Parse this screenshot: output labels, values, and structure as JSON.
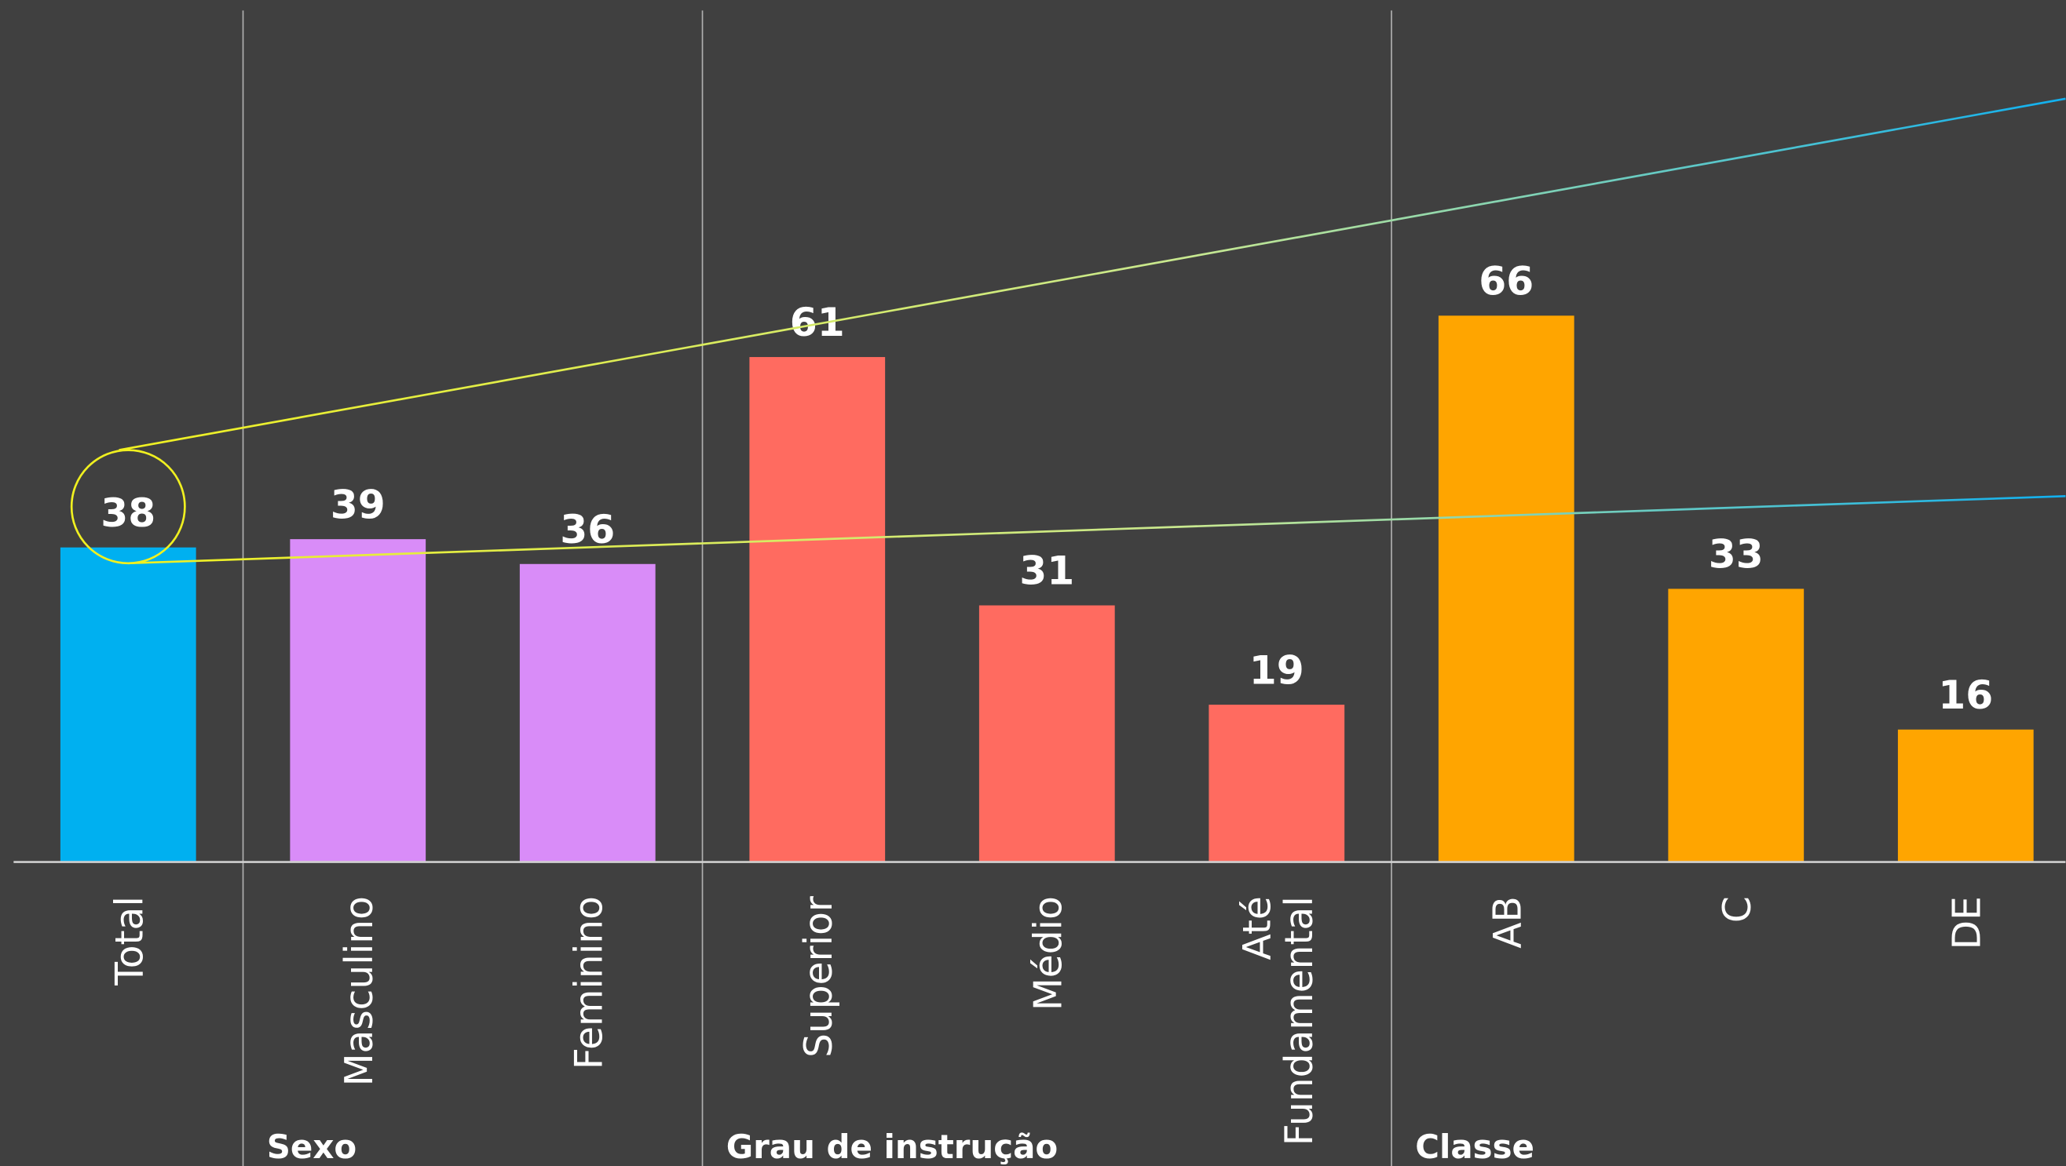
{
  "chart_data": {
    "type": "bar",
    "groups": [
      {
        "name": null,
        "color": "#00b0f0",
        "categories": [
          "Total"
        ],
        "values": [
          38
        ]
      },
      {
        "name": "Sexo",
        "color": "#d98cf8",
        "categories": [
          "Masculino",
          "Feminino"
        ],
        "values": [
          39,
          36
        ]
      },
      {
        "name": "Grau de instrução",
        "color": "#ff6b60",
        "categories": [
          "Superior",
          "Médio",
          "Até Fundamental"
        ],
        "values": [
          61,
          31,
          19
        ]
      },
      {
        "name": "Classe",
        "color": "#ffa500",
        "categories": [
          "AB",
          "C",
          "DE"
        ],
        "values": [
          66,
          33,
          16
        ]
      }
    ],
    "ylim": [
      0,
      100
    ]
  }
}
